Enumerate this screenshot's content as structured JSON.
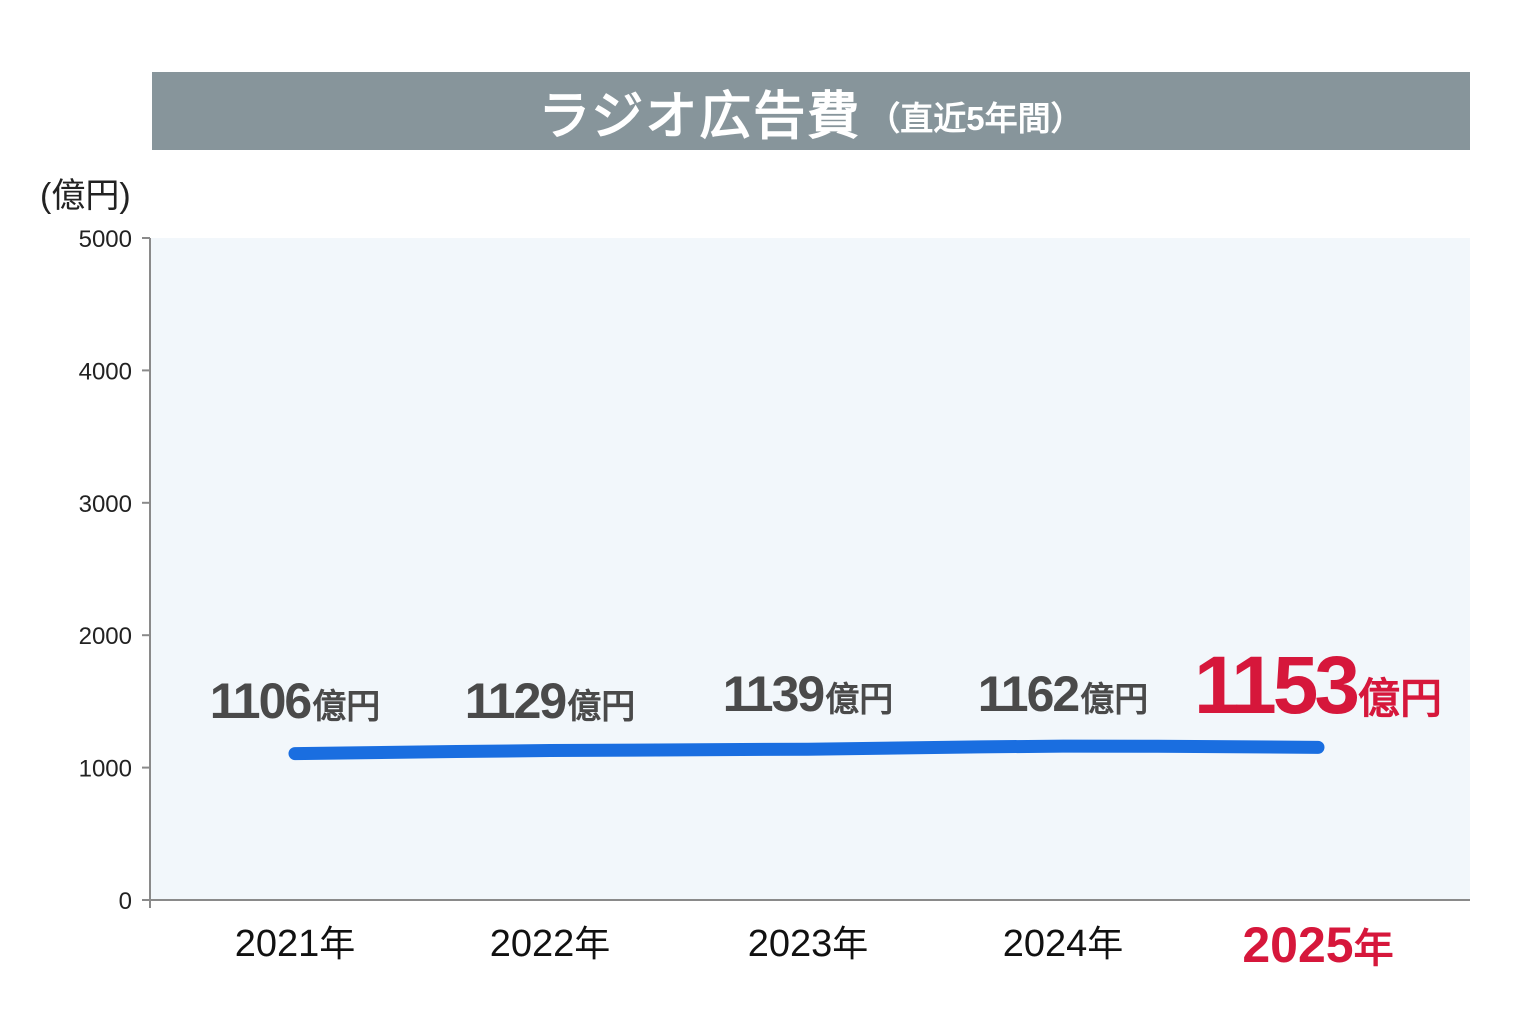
{
  "title": {
    "main": "ラジオ広告費",
    "sub": "（直近5年間）"
  },
  "unit_label": "(億円)",
  "colors": {
    "banner": "#87959b",
    "plot_background": "#f2f7fb",
    "line": "#1a6ee0",
    "label_default": "#4a4a4a",
    "highlight": "#d6173b"
  },
  "chart_data": {
    "type": "line",
    "title": "ラジオ広告費（直近5年間）",
    "ylabel": "(億円)",
    "ylim": [
      0,
      5000
    ],
    "yticks": [
      0,
      1000,
      2000,
      3000,
      4000,
      5000
    ],
    "categories": [
      "2021年",
      "2022年",
      "2023年",
      "2024年",
      "2025年"
    ],
    "category_years": [
      "2021",
      "2022",
      "2023",
      "2024",
      "2025"
    ],
    "values": [
      1106,
      1129,
      1139,
      1162,
      1153
    ],
    "value_unit": "億円",
    "year_suffix": "年",
    "highlight_index": 4,
    "grid": false,
    "legend": "none"
  }
}
